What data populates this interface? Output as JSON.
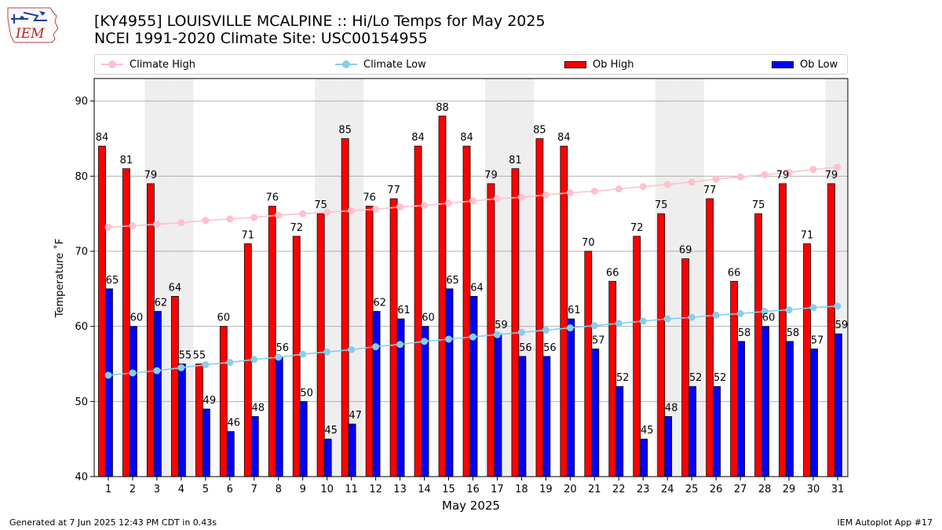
{
  "header": {
    "title_line1": "[KY4955] LOUISVILLE MCALPINE :: Hi/Lo Temps for May 2025",
    "title_line2": "NCEI 1991-2020 Climate Site: USC00154955"
  },
  "logo": {
    "text": "IEM"
  },
  "legend": {
    "climate_high": "Climate High",
    "climate_low": "Climate Low",
    "ob_high": "Ob High",
    "ob_low": "Ob Low"
  },
  "colors": {
    "ob_high": "#ff0000",
    "ob_low": "#0000ff",
    "climate_high": "#ffc0cb",
    "climate_low": "#87ceeb",
    "weekend_shade": "#eeeeee",
    "grid": "#b0b0b0"
  },
  "footer": {
    "generated": "Generated at 7 Jun 2025 12:43 PM CDT in 0.43s",
    "app": "IEM Autoplot App #17"
  },
  "chart_data": {
    "type": "bar",
    "xlabel": "May 2025",
    "ylabel": "Temperature ˚F",
    "ylim": [
      40,
      93
    ],
    "yticks": [
      40,
      50,
      60,
      70,
      80,
      90
    ],
    "grid": true,
    "legend_position": "top",
    "categories": [
      "1",
      "2",
      "3",
      "4",
      "5",
      "6",
      "7",
      "8",
      "9",
      "10",
      "11",
      "12",
      "13",
      "14",
      "15",
      "16",
      "17",
      "18",
      "19",
      "20",
      "21",
      "22",
      "23",
      "24",
      "25",
      "26",
      "27",
      "28",
      "29",
      "30",
      "31"
    ],
    "shaded_days": [
      3,
      4,
      10,
      11,
      17,
      18,
      24,
      25,
      31
    ],
    "series": [
      {
        "name": "Ob High",
        "kind": "bar",
        "values": [
          84,
          81,
          79,
          64,
          55,
          60,
          71,
          76,
          72,
          75,
          85,
          76,
          77,
          84,
          88,
          84,
          79,
          81,
          85,
          84,
          70,
          66,
          72,
          75,
          69,
          77,
          66,
          75,
          79,
          71,
          79
        ]
      },
      {
        "name": "Ob Low",
        "kind": "bar",
        "values": [
          65,
          60,
          62,
          55,
          49,
          46,
          48,
          56,
          50,
          45,
          47,
          62,
          61,
          60,
          65,
          64,
          59,
          56,
          56,
          61,
          57,
          52,
          45,
          48,
          52,
          52,
          58,
          60,
          58,
          57,
          59
        ]
      },
      {
        "name": "Climate High",
        "kind": "line",
        "values": [
          73.2,
          73.4,
          73.6,
          73.8,
          74.1,
          74.3,
          74.5,
          74.8,
          75.0,
          75.2,
          75.4,
          75.6,
          75.9,
          76.1,
          76.4,
          76.7,
          77.0,
          77.2,
          77.5,
          77.8,
          78.0,
          78.3,
          78.6,
          78.9,
          79.2,
          79.6,
          79.9,
          80.2,
          80.5,
          80.9,
          81.2
        ]
      },
      {
        "name": "Climate Low",
        "kind": "line",
        "values": [
          53.5,
          53.8,
          54.1,
          54.5,
          54.9,
          55.2,
          55.6,
          55.9,
          56.3,
          56.6,
          56.9,
          57.3,
          57.6,
          58.0,
          58.3,
          58.6,
          58.9,
          59.2,
          59.5,
          59.8,
          60.1,
          60.4,
          60.7,
          61.0,
          61.2,
          61.5,
          61.7,
          62.0,
          62.2,
          62.5,
          62.7
        ]
      }
    ]
  }
}
